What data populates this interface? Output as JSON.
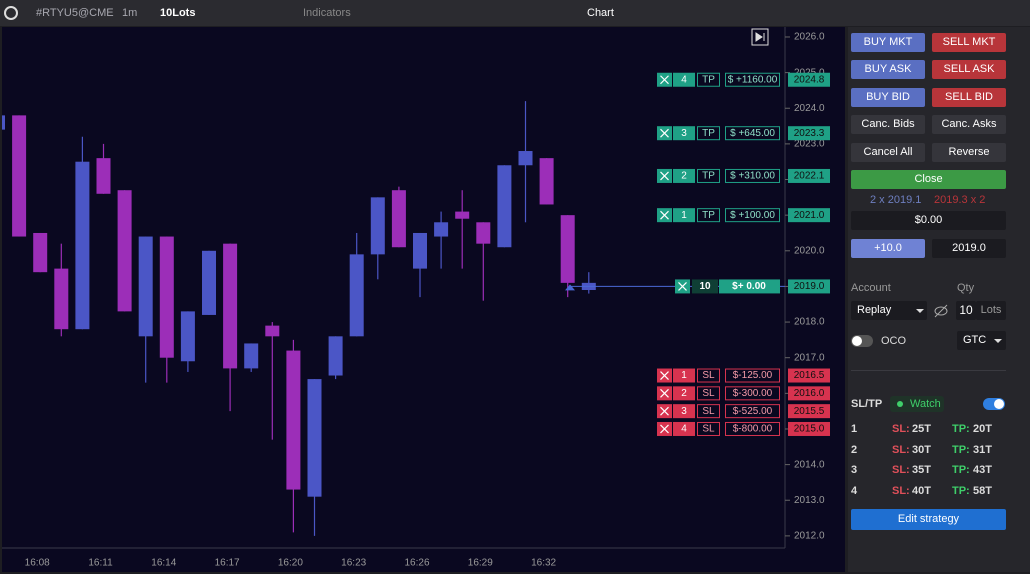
{
  "toolbar": {
    "symbol": "#RTYU5@CME",
    "timeframe": "1m",
    "lots": "10Lots",
    "indicators": "Indicators",
    "title": "Chart"
  },
  "chart_data": {
    "type": "candlestick",
    "categories": [
      null,
      null,
      "16:08",
      null,
      null,
      "16:11",
      null,
      null,
      "16:14",
      null,
      null,
      "16:17",
      null,
      null,
      "16:20",
      null,
      null,
      "16:23",
      null,
      null,
      "16:26",
      null,
      null,
      "16:29",
      null,
      null,
      "16:32",
      null,
      null
    ],
    "open": [
      2023.4,
      2023.8,
      2020.5,
      2019.5,
      2017.8,
      2022.6,
      2021.7,
      2017.6,
      2020.4,
      2016.9,
      2018.2,
      2020.2,
      2016.7,
      2017.9,
      2017.2,
      2013.1,
      2016.5,
      2017.6,
      2019.9,
      2021.7,
      2019.5,
      2020.4,
      2021.1,
      2020.8,
      2020.1,
      2022.4,
      2022.6,
      2021.0,
      2018.9
    ],
    "high": [
      2023.8,
      2023.8,
      2020.5,
      2020.2,
      2023.2,
      2023.0,
      2021.7,
      2020.4,
      2020.4,
      2018.3,
      2020.0,
      2020.2,
      2017.4,
      2018.0,
      2017.5,
      2016.4,
      2017.6,
      2020.5,
      2021.5,
      2021.8,
      2020.5,
      2021.1,
      2021.7,
      2020.8,
      2022.4,
      2024.2,
      2022.6,
      2021.0,
      2019.4
    ],
    "low": [
      2023.4,
      2020.4,
      2019.4,
      2017.6,
      2017.8,
      2021.6,
      2018.3,
      2016.3,
      2016.3,
      2016.6,
      2018.2,
      2015.5,
      2016.6,
      2014.7,
      2012.1,
      2012.0,
      2016.4,
      2017.6,
      2019.2,
      2020.1,
      2018.7,
      2019.5,
      2019.5,
      2018.6,
      2020.1,
      2020.8,
      2021.3,
      2018.7,
      2018.8
    ],
    "close": [
      2023.8,
      2020.4,
      2019.4,
      2017.8,
      2022.5,
      2021.6,
      2018.3,
      2020.4,
      2017.0,
      2018.3,
      2020.0,
      2016.7,
      2017.4,
      2017.6,
      2013.3,
      2016.4,
      2017.6,
      2019.9,
      2021.5,
      2020.1,
      2020.5,
      2020.8,
      2020.9,
      2020.2,
      2022.4,
      2022.8,
      2021.3,
      2019.1,
      2019.1
    ],
    "up_color": "#4b56c6",
    "down_color": "#9c2eb8",
    "ylim": [
      2011.66,
      2026.28
    ],
    "yticks": [
      {
        "value": 2012,
        "label": "2012.0"
      },
      {
        "value": 2013,
        "label": "2013.0"
      },
      {
        "value": 2014,
        "label": "2014.0"
      },
      {
        "value": 2015,
        "label": "2015.0"
      },
      {
        "value": 2016,
        "label": "2016.0"
      },
      {
        "value": 2017,
        "label": "2017.0"
      },
      {
        "value": 2018,
        "label": "2018.0"
      },
      {
        "value": 2019,
        "label": "2019.0"
      },
      {
        "value": 2020,
        "label": "2020.0"
      },
      {
        "value": 2021,
        "label": "2021.0"
      },
      {
        "value": 2022,
        "label": "2022.0"
      },
      {
        "value": 2023,
        "label": "2023.0"
      },
      {
        "value": 2024,
        "label": "2024.0"
      },
      {
        "value": 2025,
        "label": "2025.0"
      },
      {
        "value": 2026,
        "label": "2026.0"
      }
    ],
    "order_lines": [
      {
        "kind": "TP",
        "qty": 4,
        "pnl": "$ +1160.00",
        "price": {
          "value": 2024.8,
          "label": "2024.8"
        }
      },
      {
        "kind": "TP",
        "qty": 3,
        "pnl": "$ +645.00",
        "price": {
          "value": 2023.3,
          "label": "2023.3"
        }
      },
      {
        "kind": "TP",
        "qty": 2,
        "pnl": "$ +310.00",
        "price": {
          "value": 2022.1,
          "label": "2022.1"
        }
      },
      {
        "kind": "TP",
        "qty": 1,
        "pnl": "$ +100.00",
        "price": {
          "value": 2021.0,
          "label": "2021.0"
        }
      },
      {
        "kind": "SL",
        "qty": 1,
        "pnl": "$-125.00",
        "price": {
          "value": 2016.5,
          "label": "2016.5"
        }
      },
      {
        "kind": "SL",
        "qty": 2,
        "pnl": "$-300.00",
        "price": {
          "value": 2016.0,
          "label": "2016.0"
        }
      },
      {
        "kind": "SL",
        "qty": 3,
        "pnl": "$-525.00",
        "price": {
          "value": 2015.5,
          "label": "2015.5"
        }
      },
      {
        "kind": "SL",
        "qty": 4,
        "pnl": "$-800.00",
        "price": {
          "value": 2015.0,
          "label": "2015.0"
        }
      }
    ],
    "position": {
      "qty": 10,
      "pnl": "$+ 0.00",
      "price": {
        "value": 2019.0,
        "label": "2019.0"
      }
    }
  },
  "panel": {
    "buy_mkt": "BUY MKT",
    "sell_mkt": "SELL MKT",
    "buy_ask": "BUY ASK",
    "sell_ask": "SELL ASK",
    "buy_bid": "BUY BID",
    "sell_bid": "SELL BID",
    "cancel_bids": "Canc. Bids",
    "cancel_asks": "Canc. Asks",
    "cancel_all": "Cancel All",
    "reverse": "Reverse",
    "close": "Close",
    "bid": "2 x 2019.1",
    "ask": "2019.3 x 2",
    "pnl": "$0.00",
    "offset": "+10.0",
    "price": "2019.0",
    "account_label": "Account",
    "qty_label": "Qty",
    "account": "Replay",
    "qty": 10,
    "qty_unit": "Lots",
    "oco": "OCO",
    "tif": "GTC",
    "sltp_title": "SL/TP",
    "watch": "Watch",
    "edit": "Edit strategy",
    "strategy": [
      {
        "n": 1,
        "sl_label": "SL:",
        "sl": "25T",
        "tp_label": "TP:",
        "tp": "20T"
      },
      {
        "n": 2,
        "sl_label": "SL:",
        "sl": "30T",
        "tp_label": "TP:",
        "tp": "31T"
      },
      {
        "n": 3,
        "sl_label": "SL:",
        "sl": "35T",
        "tp_label": "TP:",
        "tp": "43T"
      },
      {
        "n": 4,
        "sl_label": "SL:",
        "sl": "40T",
        "tp_label": "TP:",
        "tp": "58T"
      }
    ]
  }
}
